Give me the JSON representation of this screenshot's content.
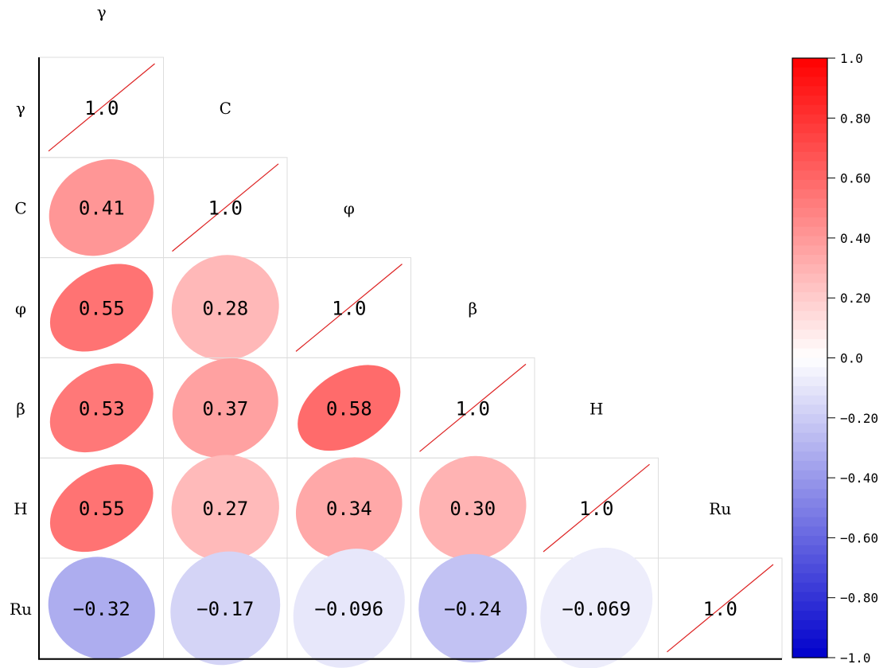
{
  "chart_data": {
    "type": "heatmap",
    "title": "",
    "variables": [
      "γ",
      "C",
      "φ",
      "β",
      "H",
      "Ru"
    ],
    "matrix": [
      [
        1.0,
        null,
        null,
        null,
        null,
        null
      ],
      [
        0.41,
        1.0,
        null,
        null,
        null,
        null
      ],
      [
        0.55,
        0.28,
        1.0,
        null,
        null,
        null
      ],
      [
        0.53,
        0.37,
        0.58,
        1.0,
        null,
        null
      ],
      [
        0.55,
        0.27,
        0.34,
        0.3,
        1.0,
        null
      ],
      [
        -0.32,
        -0.17,
        -0.096,
        -0.24,
        -0.069,
        1.0
      ]
    ],
    "value_labels": [
      [
        "1.0"
      ],
      [
        "0.41",
        "1.0"
      ],
      [
        "0.55",
        "0.28",
        "1.0"
      ],
      [
        "0.53",
        "0.37",
        "0.58",
        "1.0"
      ],
      [
        "0.55",
        "0.27",
        "0.34",
        "0.30",
        "1.0"
      ],
      [
        "−0.32",
        "−0.17",
        "−0.096",
        "−0.24",
        "−0.069",
        "1.0"
      ]
    ],
    "colorbar": {
      "range": [
        -1.0,
        1.0
      ],
      "ticks": [
        1.0,
        0.8,
        0.6,
        0.4,
        0.2,
        0.0,
        -0.2,
        -0.4,
        -0.6,
        -0.8,
        -1.0
      ],
      "tick_labels": [
        "1.0",
        "0.80",
        "0.60",
        "0.40",
        "0.20",
        "0.0",
        "−0.20",
        "−0.40",
        "−0.60",
        "−0.80",
        "−1.0"
      ],
      "colormap": "bwr",
      "low_color": "#0000cc",
      "mid_color": "#ffffff",
      "high_color": "#ff0000"
    },
    "diagonal_line_color": "#dd2222",
    "grid_color": "#dddddd"
  }
}
